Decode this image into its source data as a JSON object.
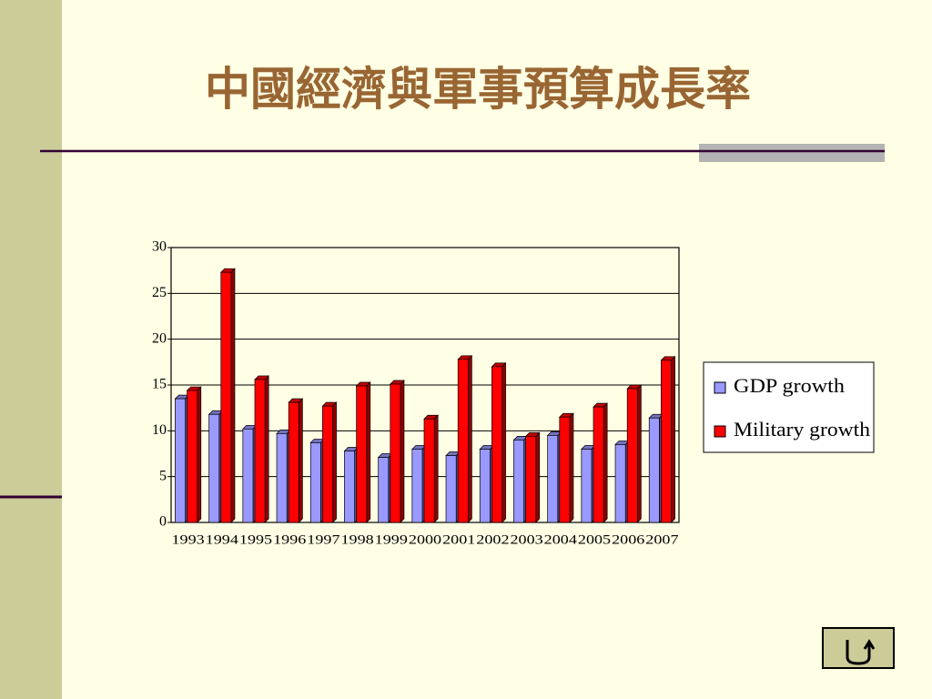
{
  "title": "中國經濟與軍事預算成長率",
  "chart_data": {
    "type": "bar",
    "categories": [
      "1993",
      "1994",
      "1995",
      "1996",
      "1997",
      "1998",
      "1999",
      "2000",
      "2001",
      "2002",
      "2003",
      "2004",
      "2005",
      "2006",
      "2007"
    ],
    "series": [
      {
        "name": "GDP growth",
        "color": "#9999ff",
        "values": [
          13.5,
          11.8,
          10.2,
          9.7,
          8.7,
          7.8,
          7.1,
          8.0,
          7.3,
          8.0,
          9.0,
          9.5,
          8.0,
          8.5,
          11.4
        ]
      },
      {
        "name": "Military growth",
        "color": "#ff0000",
        "values": [
          14.4,
          27.3,
          15.6,
          13.1,
          12.7,
          14.9,
          15.1,
          11.3,
          17.8,
          17.0,
          9.4,
          11.5,
          12.6,
          14.6,
          17.7
        ]
      }
    ],
    "ylim": [
      0,
      30
    ],
    "yticks": [
      0,
      5,
      10,
      15,
      20,
      25,
      30
    ],
    "grid": true,
    "legend": "right"
  }
}
